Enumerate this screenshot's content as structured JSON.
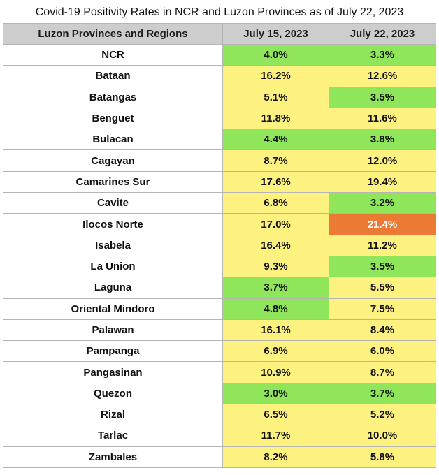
{
  "title": "Covid-19 Positivity Rates in NCR and Luzon Provinces as of July 22, 2023",
  "colors": {
    "low": "#8fe65a",
    "moderate": "#fdf27f",
    "high": "#ea7a34"
  },
  "chart_data": {
    "type": "table",
    "title": "Covid-19 Positivity Rates in NCR and Luzon Provinces as of July 22, 2023",
    "columns": [
      "Luzon Provinces and Regions",
      "July 15, 2023",
      "July 22, 2023"
    ],
    "rows": [
      {
        "name": "NCR",
        "jul15": "4.0%",
        "jul22": "3.3%",
        "jul15_level": "low",
        "jul22_level": "low"
      },
      {
        "name": "Bataan",
        "jul15": "16.2%",
        "jul22": "12.6%",
        "jul15_level": "moderate",
        "jul22_level": "moderate"
      },
      {
        "name": "Batangas",
        "jul15": "5.1%",
        "jul22": "3.5%",
        "jul15_level": "moderate",
        "jul22_level": "low"
      },
      {
        "name": "Benguet",
        "jul15": "11.8%",
        "jul22": "11.6%",
        "jul15_level": "moderate",
        "jul22_level": "moderate"
      },
      {
        "name": "Bulacan",
        "jul15": "4.4%",
        "jul22": "3.8%",
        "jul15_level": "low",
        "jul22_level": "low"
      },
      {
        "name": "Cagayan",
        "jul15": "8.7%",
        "jul22": "12.0%",
        "jul15_level": "moderate",
        "jul22_level": "moderate"
      },
      {
        "name": "Camarines Sur",
        "jul15": "17.6%",
        "jul22": "19.4%",
        "jul15_level": "moderate",
        "jul22_level": "moderate"
      },
      {
        "name": "Cavite",
        "jul15": "6.8%",
        "jul22": "3.2%",
        "jul15_level": "moderate",
        "jul22_level": "low"
      },
      {
        "name": "Ilocos Norte",
        "jul15": "17.0%",
        "jul22": "21.4%",
        "jul15_level": "moderate",
        "jul22_level": "high"
      },
      {
        "name": "Isabela",
        "jul15": "16.4%",
        "jul22": "11.2%",
        "jul15_level": "moderate",
        "jul22_level": "moderate"
      },
      {
        "name": "La Union",
        "jul15": "9.3%",
        "jul22": "3.5%",
        "jul15_level": "moderate",
        "jul22_level": "low"
      },
      {
        "name": "Laguna",
        "jul15": "3.7%",
        "jul22": "5.5%",
        "jul15_level": "low",
        "jul22_level": "moderate"
      },
      {
        "name": "Oriental Mindoro",
        "jul15": "4.8%",
        "jul22": "7.5%",
        "jul15_level": "low",
        "jul22_level": "moderate"
      },
      {
        "name": "Palawan",
        "jul15": "16.1%",
        "jul22": "8.4%",
        "jul15_level": "moderate",
        "jul22_level": "moderate"
      },
      {
        "name": "Pampanga",
        "jul15": "6.9%",
        "jul22": "6.0%",
        "jul15_level": "moderate",
        "jul22_level": "moderate"
      },
      {
        "name": "Pangasinan",
        "jul15": "10.9%",
        "jul22": "8.7%",
        "jul15_level": "moderate",
        "jul22_level": "moderate"
      },
      {
        "name": "Quezon",
        "jul15": "3.0%",
        "jul22": "3.7%",
        "jul15_level": "low",
        "jul22_level": "low"
      },
      {
        "name": "Rizal",
        "jul15": "6.5%",
        "jul22": "5.2%",
        "jul15_level": "moderate",
        "jul22_level": "moderate"
      },
      {
        "name": "Tarlac",
        "jul15": "11.7%",
        "jul22": "10.0%",
        "jul15_level": "moderate",
        "jul22_level": "moderate"
      },
      {
        "name": "Zambales",
        "jul15": "8.2%",
        "jul22": "5.8%",
        "jul15_level": "moderate",
        "jul22_level": "moderate"
      }
    ]
  }
}
